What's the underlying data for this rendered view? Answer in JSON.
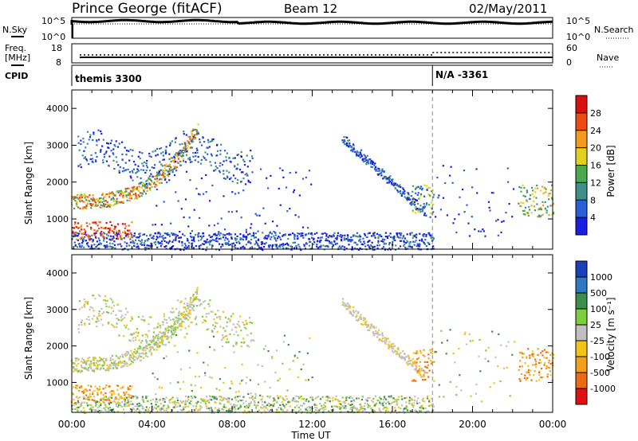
{
  "header": {
    "station": "Prince George (fitACF)",
    "beam": "Beam 12",
    "date": "02/May/2011"
  },
  "strip_labels": {
    "nsky": "N.Sky",
    "nsearch": "N.Search",
    "freq_line1": "Freq.",
    "freq_line2": "[MHz]",
    "nave": "Nave",
    "cpid": "CPID"
  },
  "strip_ticks": {
    "nsky_left": [
      "10^5",
      "10^0"
    ],
    "nsky_right": [
      "10^5",
      "10^0"
    ],
    "freq_left": [
      "18",
      "8"
    ],
    "nave_right": [
      "60",
      "0"
    ]
  },
  "cpid_entries": [
    {
      "label": "themis 3300",
      "start_hour": 0.0
    },
    {
      "label": "N/A -3361",
      "start_hour": 18.0
    }
  ],
  "chart_data": [
    {
      "type": "heatmap",
      "name": "power",
      "ylabel": "Slant Range [km]",
      "xlabel": "",
      "ylim": [
        180,
        4500
      ],
      "yticks": [
        1000,
        2000,
        3000,
        4000
      ],
      "xlim": [
        0,
        24
      ],
      "colorbar": {
        "label": "Power [dB]",
        "ticks": [
          "4",
          "8",
          "12",
          "16",
          "20",
          "24",
          "28"
        ],
        "colors": [
          "#1a1ee0",
          "#2a5fd6",
          "#3f8f8a",
          "#4aa84f",
          "#e2cf1e",
          "#f29a1a",
          "#ee4a14",
          "#d81010"
        ]
      }
    },
    {
      "type": "heatmap",
      "name": "velocity",
      "ylabel": "Slant Range [km]",
      "xlabel": "Time UT",
      "ylim": [
        180,
        4500
      ],
      "yticks": [
        1000,
        2000,
        3000,
        4000
      ],
      "xlim": [
        0,
        24
      ],
      "xticks": [
        "00:00",
        "04:00",
        "08:00",
        "12:00",
        "16:00",
        "20:00",
        "00:00"
      ],
      "colorbar": {
        "label": "Velocity [m s⁻¹]",
        "ticks": [
          "1000",
          "500",
          "100",
          "25",
          "-25",
          "-100",
          "-500",
          "-1000"
        ],
        "colors": [
          "#1a3fb8",
          "#2f78c4",
          "#3a8f4c",
          "#7ccf3c",
          "#c0c0c0",
          "#f2c418",
          "#f2a01a",
          "#ee6a12",
          "#e01010"
        ]
      }
    }
  ]
}
